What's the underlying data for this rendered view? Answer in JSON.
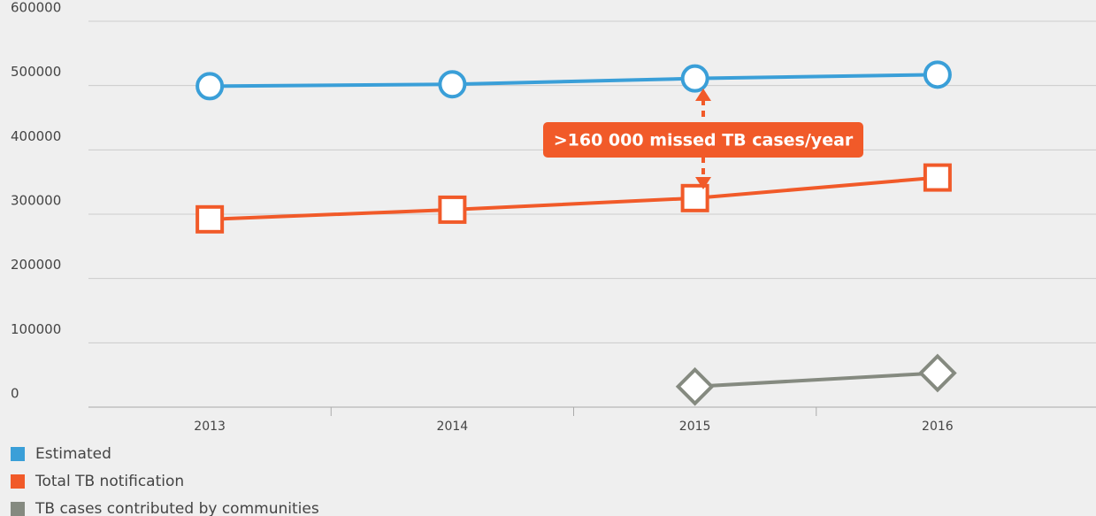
{
  "chart_data": {
    "type": "line",
    "categories": [
      "2013",
      "2014",
      "2015",
      "2016"
    ],
    "series": [
      {
        "name": "Estimated",
        "color": "#3a9fd8",
        "marker": "circle",
        "values": [
          499000,
          502000,
          511000,
          517000
        ]
      },
      {
        "name": "Total TB notification",
        "color": "#f15a29",
        "marker": "square",
        "values": [
          292000,
          307000,
          325000,
          357000
        ]
      },
      {
        "name": "TB cases contributed by communities",
        "color": "#858a80",
        "marker": "diamond",
        "values": [
          null,
          null,
          32000,
          53000
        ]
      }
    ],
    "ylim": [
      0,
      600000
    ],
    "yticks": [
      0,
      100000,
      200000,
      300000,
      400000,
      500000,
      600000
    ],
    "grid": true,
    "annotation": ">160 000 missed TB cases/year",
    "annotation_color": "#f15a29"
  }
}
